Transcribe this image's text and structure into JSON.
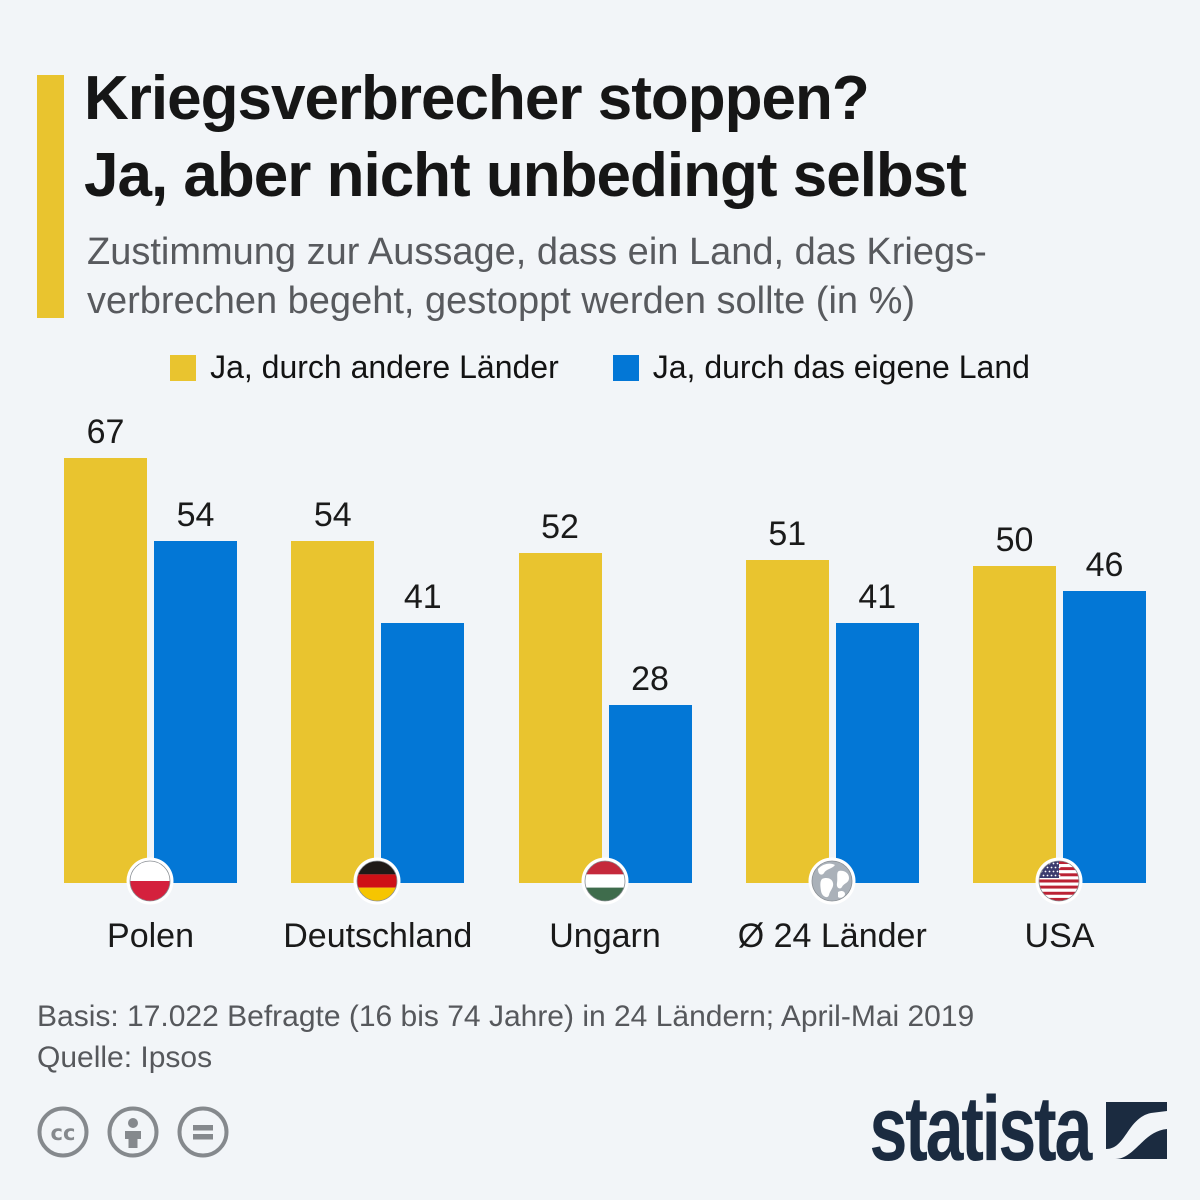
{
  "title": "Kriegsverbrecher stoppen?\nJa, aber nicht unbedingt selbst",
  "subtitle": "Zustimmung zur Aussage, dass ein Land, das Kriegs-\nverbrechen begeht, gestoppt werden sollte (in %)",
  "legend": [
    {
      "label": "Ja, durch andere Länder",
      "color": "#E9C42F"
    },
    {
      "label": "Ja, durch das eigene Land",
      "color": "#0377D6"
    }
  ],
  "chart_data": {
    "type": "bar",
    "categories": [
      "Polen",
      "Deutschland",
      "Ungarn",
      "Ø 24 Länder",
      "USA"
    ],
    "series": [
      {
        "name": "Ja, durch andere Länder",
        "color": "#E9C42F",
        "values": [
          67,
          54,
          52,
          51,
          50
        ]
      },
      {
        "name": "Ja, durch das eigene Land",
        "color": "#0377D6",
        "values": [
          54,
          41,
          28,
          41,
          46
        ]
      }
    ],
    "flag_icons": [
      "poland-flag",
      "germany-flag",
      "hungary-flag",
      "globe",
      "usa-flag"
    ],
    "unit": "%",
    "value_labels_shown": true,
    "grid": false,
    "legend_position": "top",
    "ylim": [
      0,
      70
    ]
  },
  "footer": {
    "basis": "Basis: 17.022 Befragte (16 bis 74 Jahre) in 24 Ländern; April-Mai 2019",
    "source": "Quelle: Ipsos"
  },
  "branding": {
    "logo_text": "statista"
  },
  "license_icons": [
    "cc-icon",
    "attribution-icon",
    "equals-icon"
  ],
  "colors": {
    "background": "#F2F5F8",
    "accent_yellow": "#E9C42F",
    "bar_blue": "#0377D6",
    "title_text": "#161616",
    "subtitle_text": "#585A5E",
    "footer_text": "#56585C",
    "logo_navy": "#1B2B40",
    "license_gray": "#85898D"
  }
}
